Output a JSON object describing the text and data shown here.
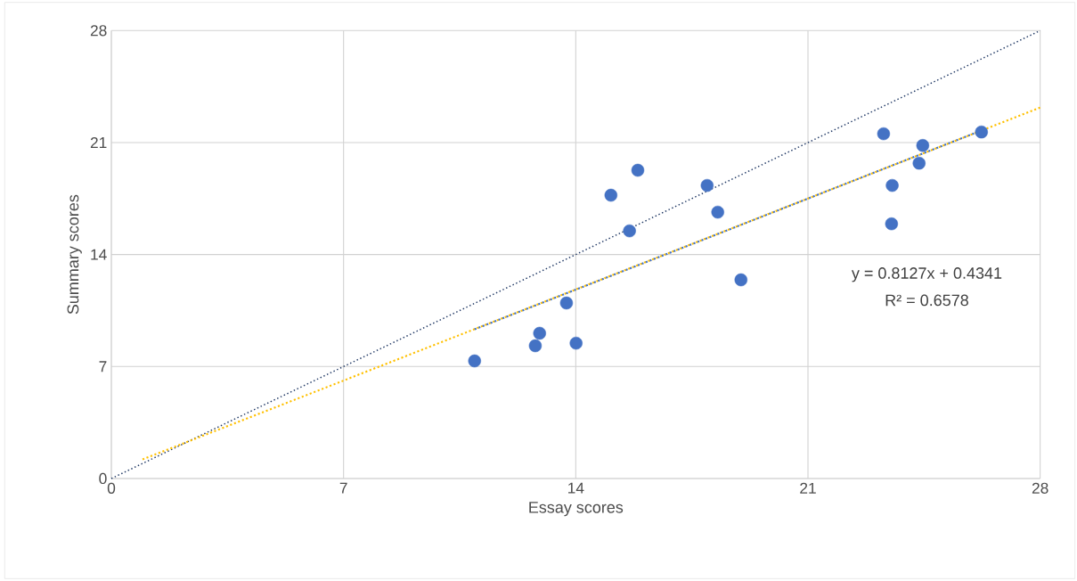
{
  "chart_data": {
    "type": "scatter",
    "xlabel": "Essay scores",
    "ylabel": "Summary scores",
    "xlim": [
      0,
      28
    ],
    "ylim": [
      0,
      28
    ],
    "xticks": [
      0,
      7,
      14,
      21,
      28
    ],
    "yticks": [
      0,
      7,
      14,
      21,
      28
    ],
    "grid": true,
    "annotations": [
      "y = 0.8127x + 0.4341",
      "R² = 0.6578"
    ],
    "series": [
      {
        "type": "line",
        "marker": "none",
        "color": "#203864",
        "line_style": "dotted",
        "x": [
          0,
          28
        ],
        "values": [
          0,
          28
        ]
      },
      {
        "type": "line",
        "marker": "none",
        "color": "#ffc000",
        "line_style": "dotted",
        "x": [
          0.94,
          28
        ],
        "values": [
          1.2,
          23.19
        ]
      },
      {
        "type": "line",
        "marker": "none",
        "color": "#4472c4",
        "line_style": "dotted",
        "x": [
          10.95,
          26.23
        ],
        "values": [
          9.33,
          21.75
        ]
      },
      {
        "marker": "circle",
        "color": "#4472c4",
        "x": [
          10.95,
          12.78,
          12.91,
          14.01,
          13.72,
          15.06,
          15.62,
          15.87,
          17.96,
          18.28,
          18.98,
          23.28,
          23.52,
          23.54,
          24.35,
          24.46,
          26.23
        ],
        "values": [
          7.35,
          8.3,
          9.08,
          8.46,
          10.97,
          17.71,
          15.48,
          19.27,
          18.32,
          16.65,
          12.42,
          21.55,
          15.92,
          18.32,
          19.71,
          20.82,
          21.66
        ]
      }
    ]
  }
}
